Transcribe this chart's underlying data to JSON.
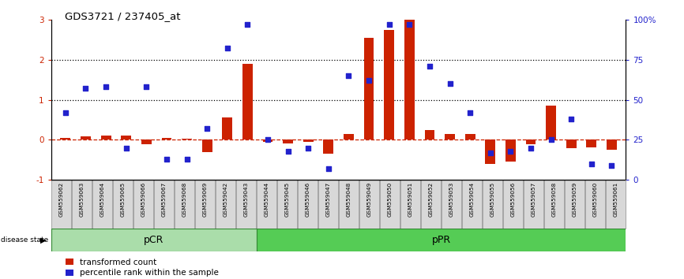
{
  "title": "GDS3721 / 237405_at",
  "samples": [
    "GSM559062",
    "GSM559063",
    "GSM559064",
    "GSM559065",
    "GSM559066",
    "GSM559067",
    "GSM559068",
    "GSM559069",
    "GSM559042",
    "GSM559043",
    "GSM559044",
    "GSM559045",
    "GSM559046",
    "GSM559047",
    "GSM559048",
    "GSM559049",
    "GSM559050",
    "GSM559051",
    "GSM559052",
    "GSM559053",
    "GSM559054",
    "GSM559055",
    "GSM559056",
    "GSM559057",
    "GSM559058",
    "GSM559059",
    "GSM559060",
    "GSM559061"
  ],
  "bar_values": [
    0.05,
    0.08,
    0.1,
    0.1,
    -0.1,
    0.05,
    0.02,
    -0.3,
    0.55,
    1.9,
    -0.05,
    -0.08,
    -0.05,
    -0.35,
    0.15,
    2.55,
    2.75,
    3.0,
    0.25,
    0.15,
    0.15,
    -0.6,
    -0.55,
    -0.1,
    0.85,
    -0.2,
    -0.18,
    -0.25
  ],
  "dot_pct": [
    42,
    57,
    58,
    20,
    58,
    13,
    13,
    32,
    82,
    97,
    25,
    18,
    20,
    7,
    65,
    62,
    97,
    97,
    71,
    60,
    42,
    17,
    18,
    20,
    25,
    38,
    10,
    9
  ],
  "pCR_count": 10,
  "pPR_count": 18,
  "bar_color": "#cc2200",
  "dot_color": "#2222cc",
  "pCR_color": "#aaddaa",
  "pPR_color": "#55cc55",
  "zero_line_color": "#cc2200",
  "dotted_line_color": "#000000",
  "ylim": [
    -1.0,
    3.0
  ],
  "left_yticks": [
    -1,
    0,
    1,
    2,
    3
  ],
  "right_yticks": [
    0,
    25,
    50,
    75,
    100
  ],
  "right_yticklabels": [
    "0",
    "25",
    "50",
    "75",
    "100%"
  ],
  "dotted_lines": [
    1.0,
    2.0
  ],
  "bar_width": 0.5
}
